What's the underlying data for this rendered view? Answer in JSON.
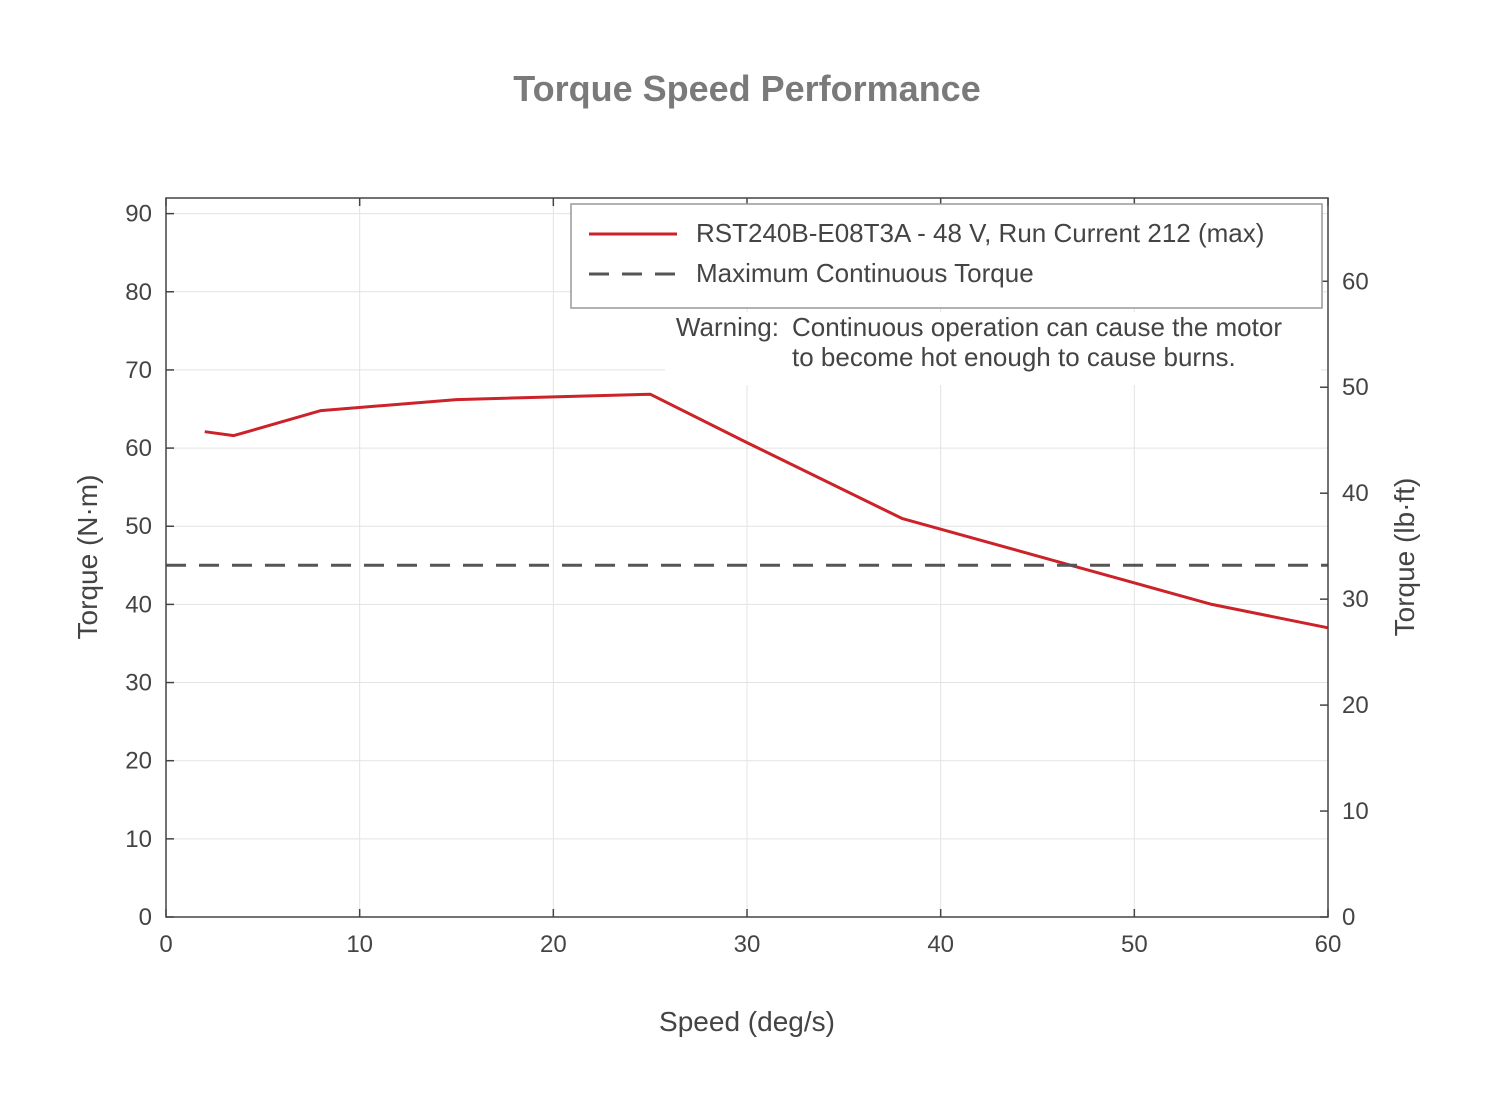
{
  "chart_data": {
    "type": "line",
    "title": "Torque Speed Performance",
    "xlabel": "Speed (deg/s)",
    "ylabel": "Torque (N·m)",
    "ylabel_right": "Torque (lb·ft)",
    "xlim": [
      0,
      60
    ],
    "ylim": [
      0,
      92
    ],
    "ylim_right_lbft": [
      0,
      67.86
    ],
    "x_ticks": [
      "0",
      "10",
      "20",
      "30",
      "40",
      "50",
      "60"
    ],
    "y_ticks": [
      "0",
      "10",
      "20",
      "30",
      "40",
      "50",
      "60",
      "70",
      "80",
      "90"
    ],
    "y_ticks_right": [
      "0",
      "10",
      "20",
      "30",
      "40",
      "50",
      "60"
    ],
    "grid": true,
    "legend_position": "top-right",
    "series": [
      {
        "name": "RST240B-E08T3A - 48 V, Run Current 212 (max)",
        "style": "solid",
        "color": "#cc2229",
        "x": [
          2,
          3.5,
          8,
          15,
          25,
          30,
          38,
          46,
          54,
          60
        ],
        "y": [
          62.1,
          61.6,
          64.8,
          66.2,
          66.9,
          60.7,
          51.0,
          45.5,
          40.0,
          37.0
        ]
      },
      {
        "name": "Maximum Continuous Torque",
        "style": "dashed",
        "color": "#555555",
        "x": [
          0,
          60
        ],
        "y": [
          45,
          45
        ]
      }
    ],
    "annotation": {
      "label": "Warning:",
      "lines": [
        "Continuous operation can cause the motor",
        "to become hot enough to cause burns."
      ]
    }
  }
}
